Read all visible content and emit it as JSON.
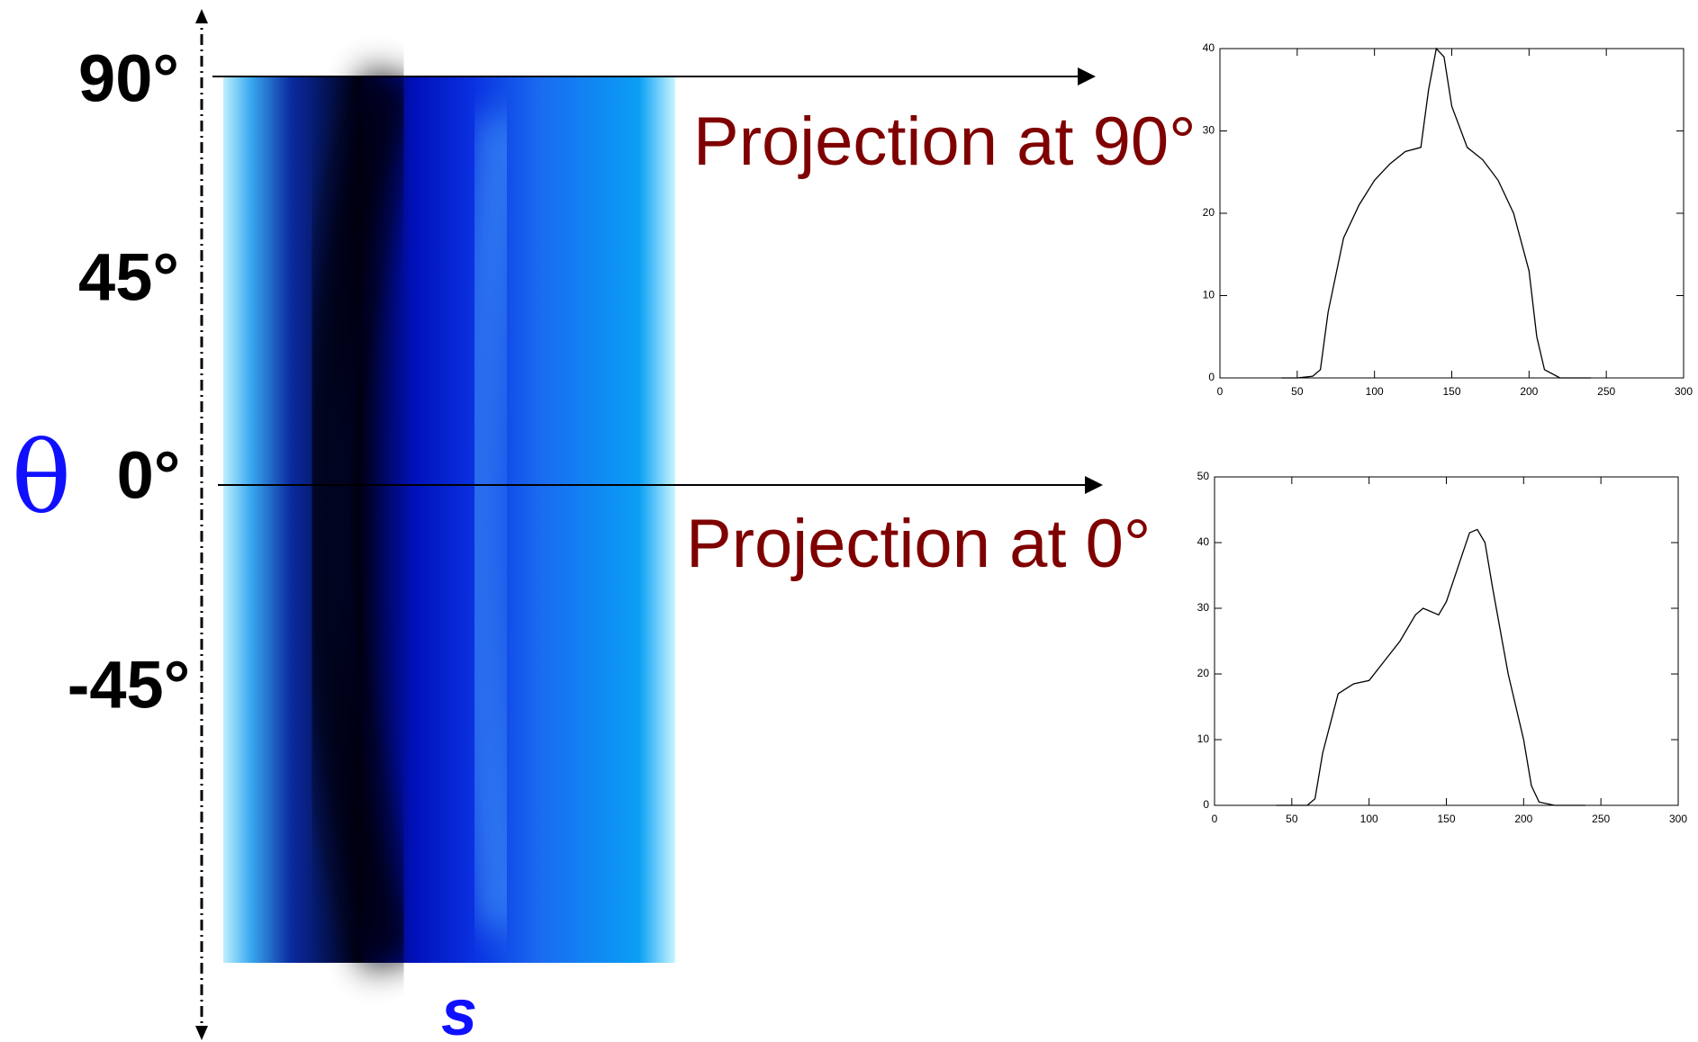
{
  "angle_labels": [
    "90°",
    "45°",
    "0°",
    "-45°"
  ],
  "theta_symbol": "θ",
  "s_symbol": "s",
  "projection_labels": [
    "Projection at 90°",
    "Projection at 0°"
  ],
  "chart_data": [
    {
      "type": "line",
      "color": "#000000",
      "x": [
        40,
        50,
        60,
        65,
        70,
        80,
        90,
        100,
        110,
        120,
        130,
        135,
        140,
        145,
        150,
        160,
        170,
        180,
        190,
        200,
        205,
        210,
        220,
        230,
        240
      ],
      "values": [
        0,
        0,
        0.2,
        1,
        8,
        17,
        21,
        24,
        26,
        27.5,
        28,
        35,
        40,
        39,
        33,
        28,
        26.5,
        24,
        20,
        13,
        5,
        1,
        0,
        0,
        0
      ],
      "xlim": [
        0,
        300
      ],
      "xticks": [
        0,
        50,
        100,
        150,
        200,
        250,
        300
      ],
      "ylim": [
        0,
        40
      ],
      "yticks": [
        0,
        10,
        20,
        30,
        40
      ]
    },
    {
      "type": "line",
      "color": "#000000",
      "x": [
        40,
        50,
        60,
        65,
        70,
        80,
        90,
        100,
        110,
        120,
        130,
        135,
        145,
        150,
        160,
        165,
        170,
        175,
        180,
        190,
        200,
        205,
        210,
        220,
        230,
        240
      ],
      "values": [
        0,
        0,
        0,
        1,
        8,
        17,
        18.5,
        19,
        22,
        25,
        29,
        30,
        29,
        31,
        38,
        41.5,
        42,
        40,
        33,
        20,
        10,
        3,
        0.5,
        0,
        0,
        0
      ],
      "xlim": [
        0,
        300
      ],
      "xticks": [
        0,
        50,
        100,
        150,
        200,
        250,
        300
      ],
      "ylim": [
        0,
        50
      ],
      "yticks": [
        0,
        10,
        20,
        30,
        40,
        50
      ]
    }
  ]
}
